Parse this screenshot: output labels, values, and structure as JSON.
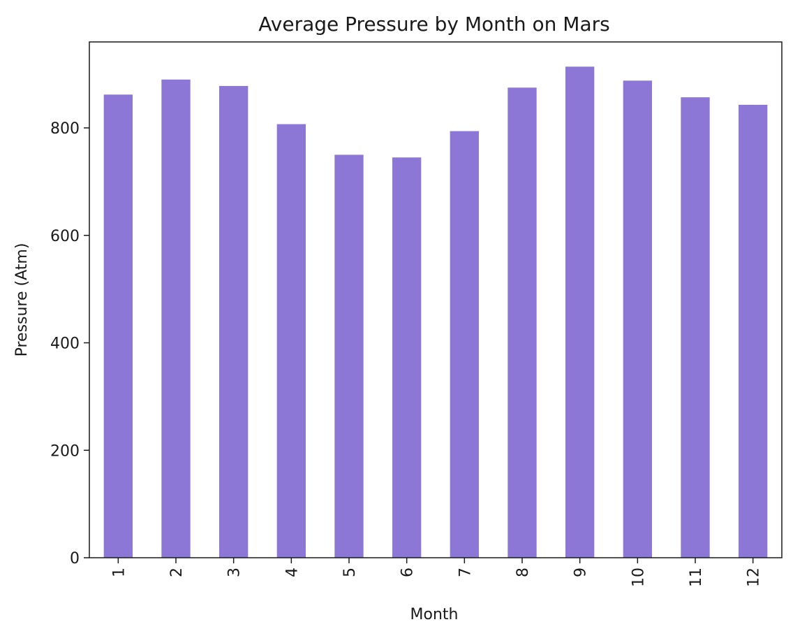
{
  "chart_data": {
    "type": "bar",
    "title": "Average Pressure by Month on Mars",
    "xlabel": "Month",
    "ylabel": "Pressure (Atm)",
    "categories": [
      "1",
      "2",
      "3",
      "4",
      "5",
      "6",
      "7",
      "8",
      "9",
      "10",
      "11",
      "12"
    ],
    "values": [
      862,
      890,
      878,
      807,
      750,
      745,
      794,
      875,
      914,
      888,
      857,
      843
    ],
    "ylim": [
      0,
      960
    ],
    "yticks": [
      0,
      200,
      400,
      600,
      800
    ],
    "grid": false,
    "legend": "none",
    "bar_color": "#8c76d6",
    "x_tick_rotation": "vertical"
  }
}
